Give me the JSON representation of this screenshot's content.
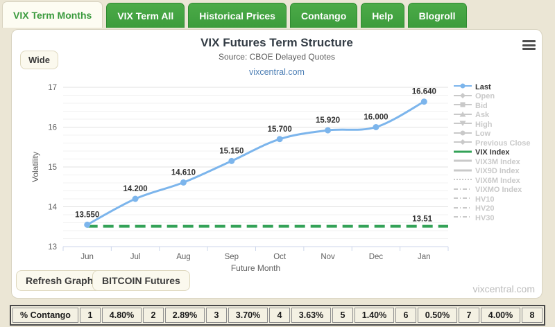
{
  "tabs": [
    {
      "label": "VIX Term Months",
      "active": true
    },
    {
      "label": "VIX Term All",
      "active": false
    },
    {
      "label": "Historical Prices",
      "active": false
    },
    {
      "label": "Contango",
      "active": false
    },
    {
      "label": "Help",
      "active": false
    },
    {
      "label": "Blogroll",
      "active": false
    }
  ],
  "controls": {
    "wide": "Wide",
    "refresh": "Refresh Graph",
    "bitcoin": "BITCOIN Futures"
  },
  "watermark": "vixcentral.com",
  "chart_data": {
    "type": "line",
    "title": "VIX Futures Term Structure",
    "subtitle": "Source: CBOE Delayed Quotes",
    "link": "vixcentral.com",
    "categories": [
      "Jun",
      "Jul",
      "Aug",
      "Sep",
      "Oct",
      "Nov",
      "Dec",
      "Jan"
    ],
    "series": [
      {
        "name": "Last",
        "color": "#7cb5ec",
        "values": [
          13.55,
          14.2,
          14.61,
          15.15,
          15.7,
          15.92,
          16.0,
          16.64
        ],
        "labels": [
          "13.550",
          "14.200",
          "14.610",
          "15.150",
          "15.700",
          "15.920",
          "16.000",
          "16.640"
        ]
      }
    ],
    "reference_line": {
      "name": "VIX Index",
      "value": 13.51,
      "label": "13.51",
      "color": "#33a257",
      "dashed": true
    },
    "xlabel": "Future Month",
    "ylabel": "Volatility",
    "ylim": [
      13,
      17
    ],
    "y_major_step": 1,
    "y_minor_step": 0.2,
    "grid": true,
    "legend_position": "right"
  },
  "legend": {
    "inactive_color": "#c9c9c9",
    "items": [
      {
        "label": "Last",
        "glyph": "line-circle",
        "color": "#7cb5ec",
        "active": true
      },
      {
        "label": "Open",
        "glyph": "line-diamond",
        "color": "#c9c9c9",
        "active": false
      },
      {
        "label": "Bid",
        "glyph": "line-square",
        "color": "#c9c9c9",
        "active": false
      },
      {
        "label": "Ask",
        "glyph": "line-triangle",
        "color": "#c9c9c9",
        "active": false
      },
      {
        "label": "High",
        "glyph": "line-triangle-down",
        "color": "#c9c9c9",
        "active": false
      },
      {
        "label": "Low",
        "glyph": "line-circle",
        "color": "#c9c9c9",
        "active": false
      },
      {
        "label": "Previous Close",
        "glyph": "line-diamond",
        "color": "#c9c9c9",
        "active": false
      },
      {
        "label": "VIX Index",
        "glyph": "line-solid",
        "color": "#33a257",
        "active": true
      },
      {
        "label": "VIX3M Index",
        "glyph": "line-solid",
        "color": "#c9c9c9",
        "active": false
      },
      {
        "label": "VIX9D Index",
        "glyph": "line-solid",
        "color": "#c9c9c9",
        "active": false
      },
      {
        "label": "VIX6M Index",
        "glyph": "line-dotted",
        "color": "#c9c9c9",
        "active": false
      },
      {
        "label": "VIXMO Index",
        "glyph": "line-dashdot",
        "color": "#c9c9c9",
        "active": false
      },
      {
        "label": "HV10",
        "glyph": "line-dashdot",
        "color": "#c9c9c9",
        "active": false
      },
      {
        "label": "HV20",
        "glyph": "line-dashdot",
        "color": "#c9c9c9",
        "active": false
      },
      {
        "label": "HV30",
        "glyph": "line-dashdot",
        "color": "#c9c9c9",
        "active": false
      }
    ]
  },
  "contango_table": {
    "row_label": "% Contango",
    "entries": [
      {
        "n": "1",
        "v": "4.80%"
      },
      {
        "n": "2",
        "v": "2.89%"
      },
      {
        "n": "3",
        "v": "3.70%"
      },
      {
        "n": "4",
        "v": "3.63%"
      },
      {
        "n": "5",
        "v": "1.40%"
      },
      {
        "n": "6",
        "v": "0.50%"
      },
      {
        "n": "7",
        "v": "4.00%"
      },
      {
        "n": "8",
        "v": ""
      }
    ]
  }
}
